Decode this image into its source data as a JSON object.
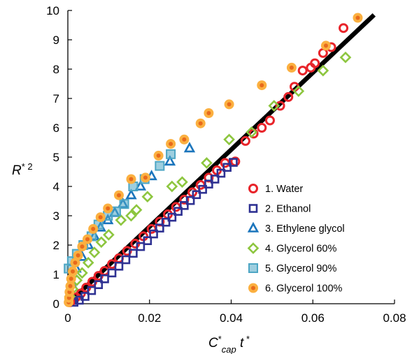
{
  "chart_data": {
    "type": "scatter",
    "title": "",
    "xlabel": {
      "base": "C",
      "base_sup": "*",
      "sub": "cap",
      "tail": " t",
      "tail_sup": " *"
    },
    "ylabel": {
      "base": "R",
      "sup": "* 2"
    },
    "xlim": [
      0,
      0.08
    ],
    "ylim": [
      0,
      10
    ],
    "x_ticks": [
      0,
      0.02,
      0.04,
      0.06,
      0.08
    ],
    "x_tick_labels": [
      "0",
      "0.02",
      "0.04",
      "0.06",
      "0.08"
    ],
    "y_ticks": [
      0,
      1,
      2,
      3,
      4,
      5,
      6,
      7,
      8,
      9,
      10
    ],
    "y_tick_labels": [
      "0",
      "1",
      "2",
      "3",
      "4",
      "5",
      "6",
      "7",
      "8",
      "9",
      "10"
    ],
    "grid": false,
    "legend_position": "bottom-right",
    "fit_line": {
      "color": "#000000",
      "points": [
        [
          0,
          0
        ],
        [
          0.075,
          9.85
        ]
      ]
    },
    "series": [
      {
        "name": "1. Water",
        "marker": "circle-open",
        "color": "#e8242a",
        "points": [
          [
            0.0005,
            0.05
          ],
          [
            0.0012,
            0.12
          ],
          [
            0.002,
            0.22
          ],
          [
            0.0032,
            0.35
          ],
          [
            0.0045,
            0.55
          ],
          [
            0.006,
            0.75
          ],
          [
            0.0075,
            0.95
          ],
          [
            0.009,
            1.12
          ],
          [
            0.0108,
            1.35
          ],
          [
            0.0125,
            1.55
          ],
          [
            0.0145,
            1.8
          ],
          [
            0.0165,
            2.05
          ],
          [
            0.0185,
            2.3
          ],
          [
            0.0205,
            2.55
          ],
          [
            0.0225,
            2.8
          ],
          [
            0.0245,
            3.05
          ],
          [
            0.0265,
            3.3
          ],
          [
            0.0285,
            3.55
          ],
          [
            0.0305,
            3.8
          ],
          [
            0.0325,
            4.05
          ],
          [
            0.0345,
            4.3
          ],
          [
            0.0365,
            4.55
          ],
          [
            0.0385,
            4.8
          ],
          [
            0.041,
            4.85
          ],
          [
            0.0435,
            5.55
          ],
          [
            0.0455,
            5.8
          ],
          [
            0.0475,
            6.0
          ],
          [
            0.0495,
            6.25
          ],
          [
            0.052,
            6.75
          ],
          [
            0.054,
            7.05
          ],
          [
            0.0555,
            7.4
          ],
          [
            0.0575,
            7.95
          ],
          [
            0.0595,
            8.05
          ],
          [
            0.0605,
            8.2
          ],
          [
            0.0625,
            8.55
          ],
          [
            0.0645,
            8.75
          ],
          [
            0.0675,
            9.4
          ]
        ]
      },
      {
        "name": "2. Ethanol",
        "marker": "square-open",
        "color": "#2e3192",
        "points": [
          [
            0.0015,
            0.05
          ],
          [
            0.0028,
            0.12
          ],
          [
            0.0042,
            0.25
          ],
          [
            0.0058,
            0.45
          ],
          [
            0.0075,
            0.65
          ],
          [
            0.009,
            0.85
          ],
          [
            0.0108,
            1.05
          ],
          [
            0.0125,
            1.28
          ],
          [
            0.0142,
            1.5
          ],
          [
            0.016,
            1.72
          ],
          [
            0.0178,
            1.95
          ],
          [
            0.0195,
            2.15
          ],
          [
            0.021,
            2.38
          ],
          [
            0.0225,
            2.58
          ],
          [
            0.024,
            2.78
          ],
          [
            0.0255,
            2.95
          ],
          [
            0.027,
            3.15
          ],
          [
            0.0285,
            3.35
          ],
          [
            0.03,
            3.52
          ],
          [
            0.0315,
            3.72
          ],
          [
            0.033,
            3.9
          ],
          [
            0.0345,
            4.08
          ],
          [
            0.036,
            4.25
          ],
          [
            0.0375,
            4.45
          ],
          [
            0.039,
            4.65
          ],
          [
            0.0405,
            4.82
          ]
        ]
      },
      {
        "name": "3. Ethylene glycol",
        "marker": "triangle-open",
        "color": "#1b75bc",
        "points": [
          [
            0.0008,
            0.7
          ],
          [
            0.002,
            1.2
          ],
          [
            0.0035,
            1.6
          ],
          [
            0.005,
            2.0
          ],
          [
            0.0065,
            2.3
          ],
          [
            0.008,
            2.6
          ],
          [
            0.0098,
            2.85
          ],
          [
            0.0115,
            3.1
          ],
          [
            0.0135,
            3.4
          ],
          [
            0.0155,
            3.7
          ],
          [
            0.0178,
            4.0
          ],
          [
            0.0205,
            4.35
          ],
          [
            0.025,
            4.85
          ],
          [
            0.0298,
            5.3
          ]
        ]
      },
      {
        "name": "4. Glycerol 60%",
        "marker": "diamond-open",
        "color": "#8dc63f",
        "points": [
          [
            0.0005,
            0.25
          ],
          [
            0.0012,
            0.5
          ],
          [
            0.0022,
            0.8
          ],
          [
            0.0035,
            1.05
          ],
          [
            0.005,
            1.4
          ],
          [
            0.0065,
            1.75
          ],
          [
            0.0082,
            2.1
          ],
          [
            0.01,
            2.35
          ],
          [
            0.013,
            2.85
          ],
          [
            0.0155,
            3.0
          ],
          [
            0.0168,
            3.2
          ],
          [
            0.0195,
            3.65
          ],
          [
            0.0255,
            4.0
          ],
          [
            0.028,
            4.15
          ],
          [
            0.034,
            4.8
          ],
          [
            0.0395,
            5.6
          ],
          [
            0.045,
            5.85
          ],
          [
            0.0505,
            6.75
          ],
          [
            0.0565,
            7.25
          ],
          [
            0.0625,
            7.95
          ],
          [
            0.068,
            8.4
          ]
        ]
      },
      {
        "name": "5. Glycerol 90%",
        "marker": "square-filled",
        "color": "#4da6c4",
        "points": [
          [
            0.0002,
            1.2
          ],
          [
            0.001,
            1.45
          ],
          [
            0.0022,
            1.7
          ],
          [
            0.0038,
            2.0
          ],
          [
            0.0058,
            2.3
          ],
          [
            0.0075,
            2.7
          ],
          [
            0.0098,
            3.0
          ],
          [
            0.0118,
            3.15
          ],
          [
            0.0138,
            3.4
          ],
          [
            0.016,
            4.0
          ],
          [
            0.0188,
            4.25
          ],
          [
            0.0225,
            4.7
          ],
          [
            0.0252,
            5.1
          ]
        ]
      },
      {
        "name": "6. Glycerol 100%",
        "marker": "circle-dot",
        "color": "#fbb040",
        "points": [
          [
            0.0002,
            0.05
          ],
          [
            0.0003,
            0.2
          ],
          [
            0.0004,
            0.4
          ],
          [
            0.0006,
            0.6
          ],
          [
            0.0008,
            0.85
          ],
          [
            0.0012,
            1.1
          ],
          [
            0.0018,
            1.4
          ],
          [
            0.0025,
            1.65
          ],
          [
            0.0035,
            1.95
          ],
          [
            0.0048,
            2.2
          ],
          [
            0.0062,
            2.55
          ],
          [
            0.008,
            2.95
          ],
          [
            0.0098,
            3.25
          ],
          [
            0.0125,
            3.7
          ],
          [
            0.0155,
            4.25
          ],
          [
            0.019,
            4.3
          ],
          [
            0.0222,
            5.05
          ],
          [
            0.0252,
            5.45
          ],
          [
            0.0285,
            5.6
          ],
          [
            0.0325,
            6.15
          ],
          [
            0.0345,
            6.5
          ],
          [
            0.0395,
            6.8
          ],
          [
            0.0475,
            7.45
          ],
          [
            0.0548,
            8.05
          ],
          [
            0.0632,
            8.8
          ],
          [
            0.071,
            9.75
          ]
        ]
      }
    ]
  }
}
